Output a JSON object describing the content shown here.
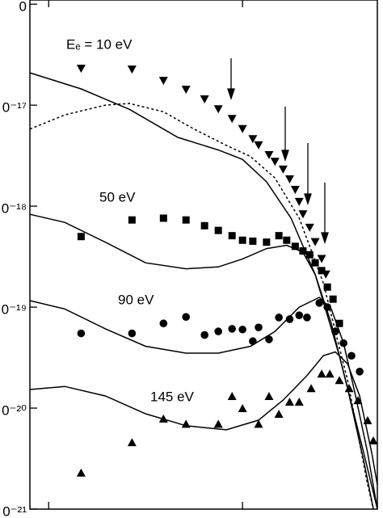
{
  "chart_data": {
    "type": "scatter",
    "ylog": true,
    "xlog": true,
    "xlim": [
      0.8,
      49.6
    ],
    "ylim": [
      1e-21,
      1.1e-16
    ],
    "xticks": [
      {
        "value": 1,
        "label": ""
      },
      {
        "value": 10,
        "label": ""
      }
    ],
    "yticks": [
      {
        "value": 1e-16,
        "label": "0"
      },
      {
        "value": 1e-17,
        "label": "0⁻¹⁷"
      },
      {
        "value": 1e-18,
        "label": "0⁻¹⁸"
      },
      {
        "value": 1e-19,
        "label": "0⁻¹⁹"
      },
      {
        "value": 1e-20,
        "label": "0⁻²⁰"
      },
      {
        "value": 1e-21,
        "label": "0⁻²¹"
      }
    ],
    "annotations": [
      "Eₑ = 10 eV",
      "50 eV",
      "90 eV",
      "145 eV"
    ],
    "series": [
      {
        "marker": "triangle-down",
        "color": "#000000",
        "x": [
          1.47,
          2.69,
          3.91,
          5.11,
          6.37,
          7.5,
          8.83,
          10,
          11.3,
          12.1,
          13.7,
          14.7,
          16.2,
          17.5,
          18.7,
          19.6,
          20.5,
          22.2,
          23.7,
          25.6,
          26.9
        ],
        "y": [
          2.29e-17,
          2.25e-17,
          1.74e-17,
          1.42e-17,
          1.14e-17,
          9.1e-18,
          7.3e-18,
          5.8e-18,
          4.6e-18,
          4e-18,
          3.2e-18,
          2.75e-18,
          2.3e-18,
          1.84e-18,
          1.45e-18,
          1.1e-18,
          8.3e-19,
          6.1e-19,
          4.4e-19,
          3e-19,
          2.1e-19
        ]
      },
      {
        "marker": "square",
        "color": "#000000",
        "x": [
          1.47,
          2.69,
          3.91,
          5.11,
          6.37,
          7.5,
          8.83,
          10,
          11.3,
          13.3,
          15.4,
          16.9,
          18.7,
          20.5,
          22.2,
          23.7,
          25.6,
          27.4,
          29.3,
          31.6
        ],
        "y": [
          5e-19,
          7.3e-19,
          7.6e-19,
          7.3e-19,
          6.4e-19,
          5.75e-19,
          5.1e-19,
          4.6e-19,
          4.5e-19,
          4.4e-19,
          5.1e-19,
          4.6e-19,
          4e-19,
          3.6e-19,
          3.3e-19,
          2.75e-19,
          2.3e-19,
          1.58e-19,
          1.2e-19,
          6.9e-20
        ]
      },
      {
        "marker": "circle",
        "color": "#000000",
        "x": [
          1.47,
          2.69,
          3.91,
          5.11,
          6.37,
          7.5,
          8.83,
          10,
          11.3,
          12.1,
          13.7,
          15.4,
          17.5,
          19.6,
          21.5,
          24.9,
          27.4,
          30.1,
          33.2,
          36.5,
          40.2
        ],
        "y": [
          5.5e-20,
          5.5e-20,
          6.9e-20,
          8e-20,
          5.3e-20,
          5.75e-20,
          6.1e-20,
          6e-20,
          4.6e-20,
          6.3e-20,
          4.8e-20,
          7.9e-20,
          7.6e-20,
          8.3e-20,
          7.9e-20,
          1.1e-19,
          1e-19,
          5.75e-20,
          4.4e-20,
          3.3e-20,
          2.3e-20
        ]
      },
      {
        "marker": "triangle-up",
        "color": "#000000",
        "x": [
          1.47,
          2.69,
          3.91,
          5.11,
          7.5,
          8.83,
          10,
          12.1,
          13.7,
          15.4,
          17.5,
          19.6,
          22.6,
          25.6,
          28.2,
          31.6,
          35.5,
          39.4,
          44.2,
          47.3
        ],
        "y": [
          2.3e-21,
          4.6e-21,
          7.9e-21,
          7e-21,
          7e-21,
          1.32e-20,
          1e-20,
          7e-21,
          1.32e-20,
          8.8e-21,
          1.16e-20,
          1.16e-20,
          1.58e-20,
          2.2e-20,
          2.2e-20,
          1.9e-20,
          1.58e-20,
          1.2e-20,
          7.6e-21,
          4.8e-21
        ]
      }
    ],
    "curves": [
      {
        "style": "solid",
        "color": "#000000",
        "x": [
          0.8,
          1.47,
          2.61,
          4.64,
          7.5,
          10,
          13.3,
          17.8,
          23.7,
          31.6,
          42.2,
          49.6
        ],
        "y": [
          2.09e-17,
          1.45e-17,
          9.1e-18,
          4.8e-18,
          3.6e-18,
          2.9e-18,
          1.74e-18,
          7.6e-19,
          2.1e-19,
          3.3e-20,
          3.6e-21,
          1e-21
        ]
      },
      {
        "style": "dotted",
        "color": "#000000",
        "x": [
          0.8,
          1.21,
          1.96,
          2.61,
          3.91,
          5.62,
          8.25,
          11.0,
          14.7,
          19.6,
          26.1,
          34.8,
          44.2,
          47.3
        ],
        "y": [
          5.8e-18,
          8e-18,
          1e-17,
          1.04e-17,
          8.6e-18,
          5.8e-18,
          4e-18,
          3.1e-18,
          1.9e-18,
          7.6e-19,
          1.74e-19,
          1.9e-20,
          1.74e-21,
          1e-21
        ]
      },
      {
        "style": "solid",
        "color": "#000000",
        "x": [
          0.8,
          1.21,
          1.96,
          3.16,
          5.11,
          7.5,
          10,
          13.3,
          16.9,
          20.5,
          23.7,
          28.7,
          34.8,
          42.2,
          47.3
        ],
        "y": [
          8.3e-19,
          6.9e-19,
          4.4e-19,
          2.75e-19,
          2.4e-19,
          2.5e-19,
          3e-19,
          3.8e-19,
          4.1e-19,
          3.5e-19,
          2.1e-19,
          6.9e-20,
          1.58e-20,
          3e-21,
          1e-21
        ]
      },
      {
        "style": "solid",
        "color": "#000000",
        "x": [
          0.8,
          1.21,
          1.96,
          3.16,
          5.11,
          7.5,
          11.0,
          14.7,
          19.6,
          24.9,
          28.7,
          33.2,
          38.3,
          44.2,
          49.6
        ],
        "y": [
          1.16e-19,
          9.6e-20,
          6.1e-20,
          4.1e-20,
          3.5e-20,
          3.5e-20,
          4.1e-20,
          5.75e-20,
          1e-19,
          1.25e-19,
          9.6e-20,
          4.4e-20,
          1.32e-20,
          3.6e-21,
          1e-21
        ]
      },
      {
        "style": "solid",
        "color": "#000000",
        "x": [
          0.8,
          1.21,
          1.96,
          3.16,
          5.11,
          8.25,
          12.1,
          16.2,
          21.5,
          26.1,
          30.1,
          34.8,
          40.2,
          46.4,
          49.6
        ],
        "y": [
          1.53e-20,
          1.64e-20,
          1.32e-20,
          8.8e-21,
          6.7e-21,
          6.1e-21,
          7.6e-21,
          1.2e-20,
          2.1e-20,
          3.3e-20,
          3.6e-20,
          2.75e-20,
          1.32e-20,
          3.6e-21,
          1.74e-21
        ]
      }
    ]
  }
}
